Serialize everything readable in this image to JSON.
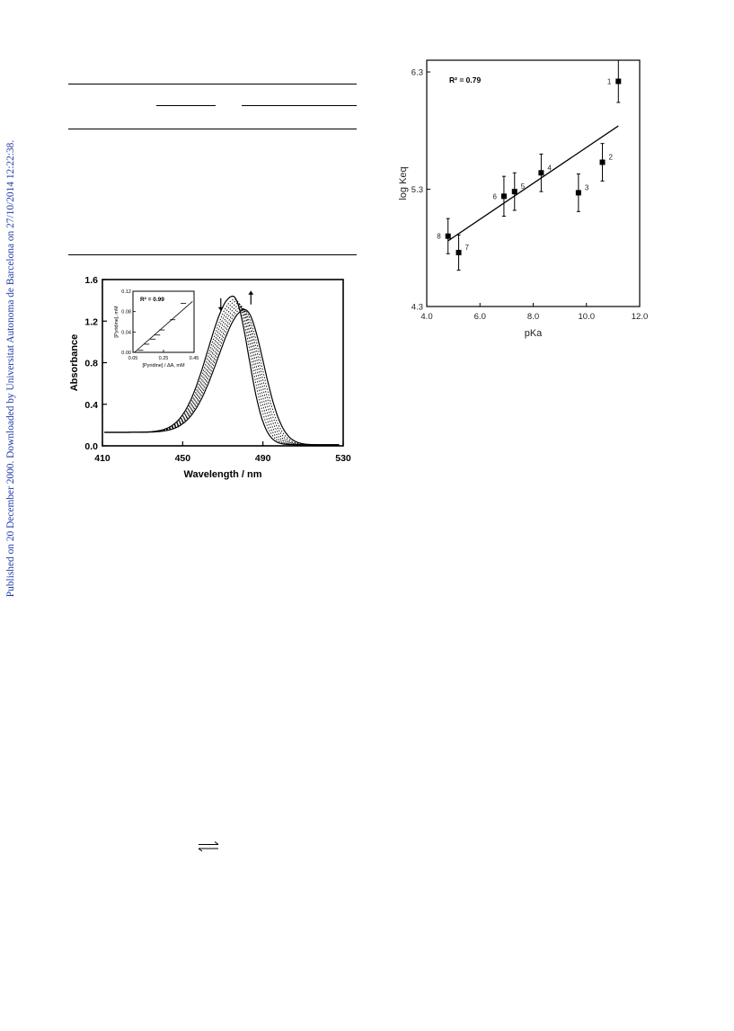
{
  "side_note": "Published on 20 December 2000. Downloaded by Universitat Autonoma de Barcelona on 27/10/2014 12:22:38.",
  "equilibrium_symbol": "⇌",
  "chart_data": [
    {
      "type": "line",
      "title": "",
      "xlabel": "Wavelength / nm",
      "ylabel": "Absorbance",
      "xlim": [
        410,
        530
      ],
      "ylim": [
        0.0,
        1.6
      ],
      "x_ticks": [
        "410",
        "450",
        "490",
        "530"
      ],
      "y_ticks": [
        "0.0",
        "0.4",
        "0.8",
        "1.2",
        "1.6"
      ],
      "grid": false,
      "legend": "none",
      "description_curves": "family of absorption spectra; peak decreases near 475 nm and shifts toward ~481 nm",
      "series": [
        {
          "peak_x": 475.0,
          "peak_y": 1.44,
          "width_left": 17.5,
          "width_right": 11.0,
          "style": "solid"
        },
        {
          "peak_x": 476.0,
          "peak_y": 1.41,
          "width_left": 17.8,
          "width_right": 11.3,
          "style": "dotted"
        },
        {
          "peak_x": 476.8,
          "peak_y": 1.39,
          "width_left": 18.0,
          "width_right": 11.6,
          "style": "dotted"
        },
        {
          "peak_x": 477.6,
          "peak_y": 1.37,
          "width_left": 18.2,
          "width_right": 11.9,
          "style": "dotted"
        },
        {
          "peak_x": 478.4,
          "peak_y": 1.35,
          "width_left": 18.4,
          "width_right": 12.2,
          "style": "dotted"
        },
        {
          "peak_x": 479.2,
          "peak_y": 1.33,
          "width_left": 18.6,
          "width_right": 12.5,
          "style": "dotted"
        },
        {
          "peak_x": 480.0,
          "peak_y": 1.32,
          "width_left": 18.8,
          "width_right": 12.8,
          "style": "dotted"
        },
        {
          "peak_x": 481.0,
          "peak_y": 1.31,
          "width_left": 19.0,
          "width_right": 13.1,
          "style": "solid"
        }
      ],
      "baseline": 0.13,
      "tail_end": 0.01,
      "arrows": [
        {
          "x": 469,
          "y_from": 1.42,
          "y_to": 1.3,
          "direction": "down"
        },
        {
          "x": 484,
          "y_from": 1.36,
          "y_to": 1.49,
          "direction": "up"
        }
      ],
      "inset": {
        "type": "line",
        "annotation": "R² = 0.99",
        "xlabel": "[Pyridine] / ΔA, mM",
        "ylabel": "[Pyridine], mM",
        "xlim": [
          0.05,
          0.45
        ],
        "ylim": [
          0.0,
          0.12
        ],
        "x_ticks": [
          "0.05",
          "0.25",
          "0.45"
        ],
        "y_ticks": [
          "0.00",
          "0.04",
          "0.08",
          "0.12"
        ],
        "points": [
          [
            0.1,
            0.004
          ],
          [
            0.14,
            0.016
          ],
          [
            0.18,
            0.026
          ],
          [
            0.21,
            0.034
          ],
          [
            0.24,
            0.044
          ],
          [
            0.31,
            0.064
          ],
          [
            0.38,
            0.096
          ]
        ],
        "fit": [
          [
            0.06,
            0.0
          ],
          [
            0.44,
            0.1
          ]
        ]
      }
    },
    {
      "type": "scatter",
      "title": "",
      "annotation": "R² = 0.79",
      "xlabel": "pKa",
      "ylabel": "log Keq",
      "xlim": [
        4.0,
        12.0
      ],
      "ylim": [
        4.3,
        6.3
      ],
      "x_ticks": [
        "4.0",
        "6.0",
        "8.0",
        "10.0",
        "12.0"
      ],
      "y_ticks": [
        "4.3",
        "5.3",
        "6.3"
      ],
      "grid": false,
      "legend": "none",
      "points": [
        {
          "label": "1",
          "x": 11.2,
          "y": 6.22,
          "err": 0.18
        },
        {
          "label": "2",
          "x": 10.6,
          "y": 5.53,
          "err": 0.16
        },
        {
          "label": "3",
          "x": 9.7,
          "y": 5.27,
          "err": 0.16
        },
        {
          "label": "4",
          "x": 8.3,
          "y": 5.44,
          "err": 0.16
        },
        {
          "label": "5",
          "x": 7.3,
          "y": 5.28,
          "err": 0.16
        },
        {
          "label": "6",
          "x": 6.9,
          "y": 5.24,
          "err": 0.17
        },
        {
          "label": "7",
          "x": 5.2,
          "y": 4.76,
          "err": 0.15
        },
        {
          "label": "8",
          "x": 4.8,
          "y": 4.9,
          "err": 0.15
        }
      ],
      "fit": [
        [
          4.8,
          4.86
        ],
        [
          11.2,
          5.84
        ]
      ]
    }
  ]
}
